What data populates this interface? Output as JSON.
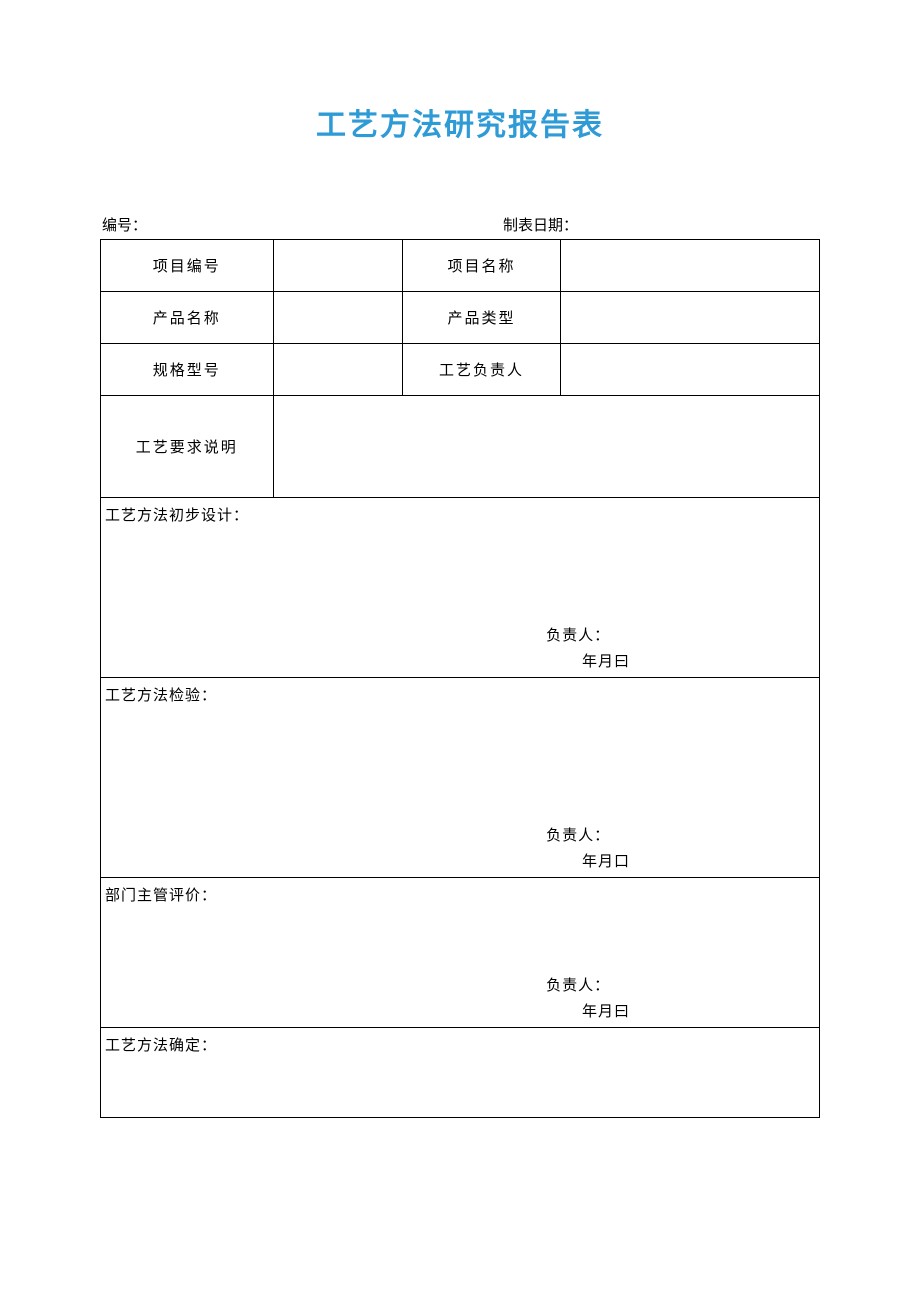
{
  "title": "工艺方法研究报告表",
  "header": {
    "number_label": "编号：",
    "date_label": "制表日期："
  },
  "rows": {
    "r1c1": "项目编号",
    "r1c3": "项目名称",
    "r2c1": "产品名称",
    "r2c3": "产品类型",
    "r3c1": "规格型号",
    "r3c3": "工艺负责人",
    "r4c1": "工艺要求说明"
  },
  "sections": {
    "s1": {
      "label": "工艺方法初步设计：",
      "signer": "负责人：",
      "date": "年月曰"
    },
    "s2": {
      "label": "工艺方法检验：",
      "signer": "负责人：",
      "date": "年月口"
    },
    "s3": {
      "label": "部门主管评价：",
      "signer": "负责人：",
      "date": "年月曰"
    },
    "s4": {
      "label": "工艺方法确定："
    }
  },
  "colors": {
    "title": "#2e9bd6",
    "text": "#000000",
    "border": "#000000",
    "background": "#ffffff"
  },
  "typography": {
    "title_fontsize": 30,
    "body_fontsize": 15,
    "title_family": "SimHei",
    "body_family": "SimSun"
  }
}
